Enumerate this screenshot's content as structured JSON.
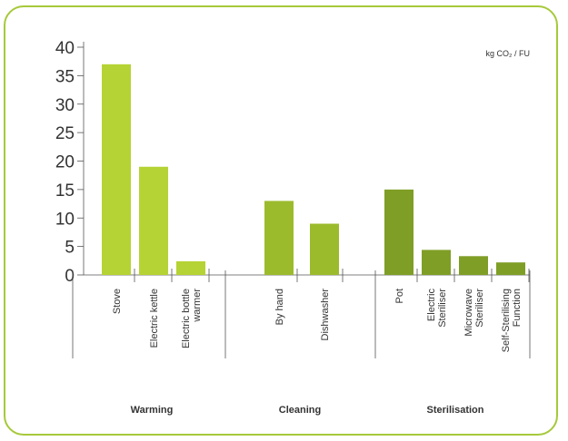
{
  "chart_data": {
    "type": "bar",
    "unit_label": "kg CO₂ / FU",
    "ylim": [
      0,
      40
    ],
    "y_ticks": [
      "0",
      "5",
      "10",
      "15",
      "20",
      "25",
      "30",
      "35",
      "40"
    ],
    "groups": [
      {
        "name": "Warming",
        "color": "#b5d334",
        "categories": [
          {
            "label": [
              "Stove"
            ],
            "value": 37
          },
          {
            "label": [
              "Electric kettle"
            ],
            "value": 19
          },
          {
            "label": [
              "Electric bottle",
              "warmer"
            ],
            "value": 2.4
          }
        ]
      },
      {
        "name": "Cleaning",
        "color": "#9bbb2d",
        "categories": [
          {
            "label": [
              "By hand"
            ],
            "value": 13
          },
          {
            "label": [
              "Dishwasher"
            ],
            "value": 9
          }
        ]
      },
      {
        "name": "Sterilisation",
        "color": "#7f9e26",
        "categories": [
          {
            "label": [
              "Pot"
            ],
            "value": 15
          },
          {
            "label": [
              "Electric",
              "Steriliser"
            ],
            "value": 4.4
          },
          {
            "label": [
              "Microwave",
              "Steriliser"
            ],
            "value": 3.3
          },
          {
            "label": [
              "Self-Sterilising",
              "Function"
            ],
            "value": 2.2
          }
        ]
      }
    ]
  }
}
